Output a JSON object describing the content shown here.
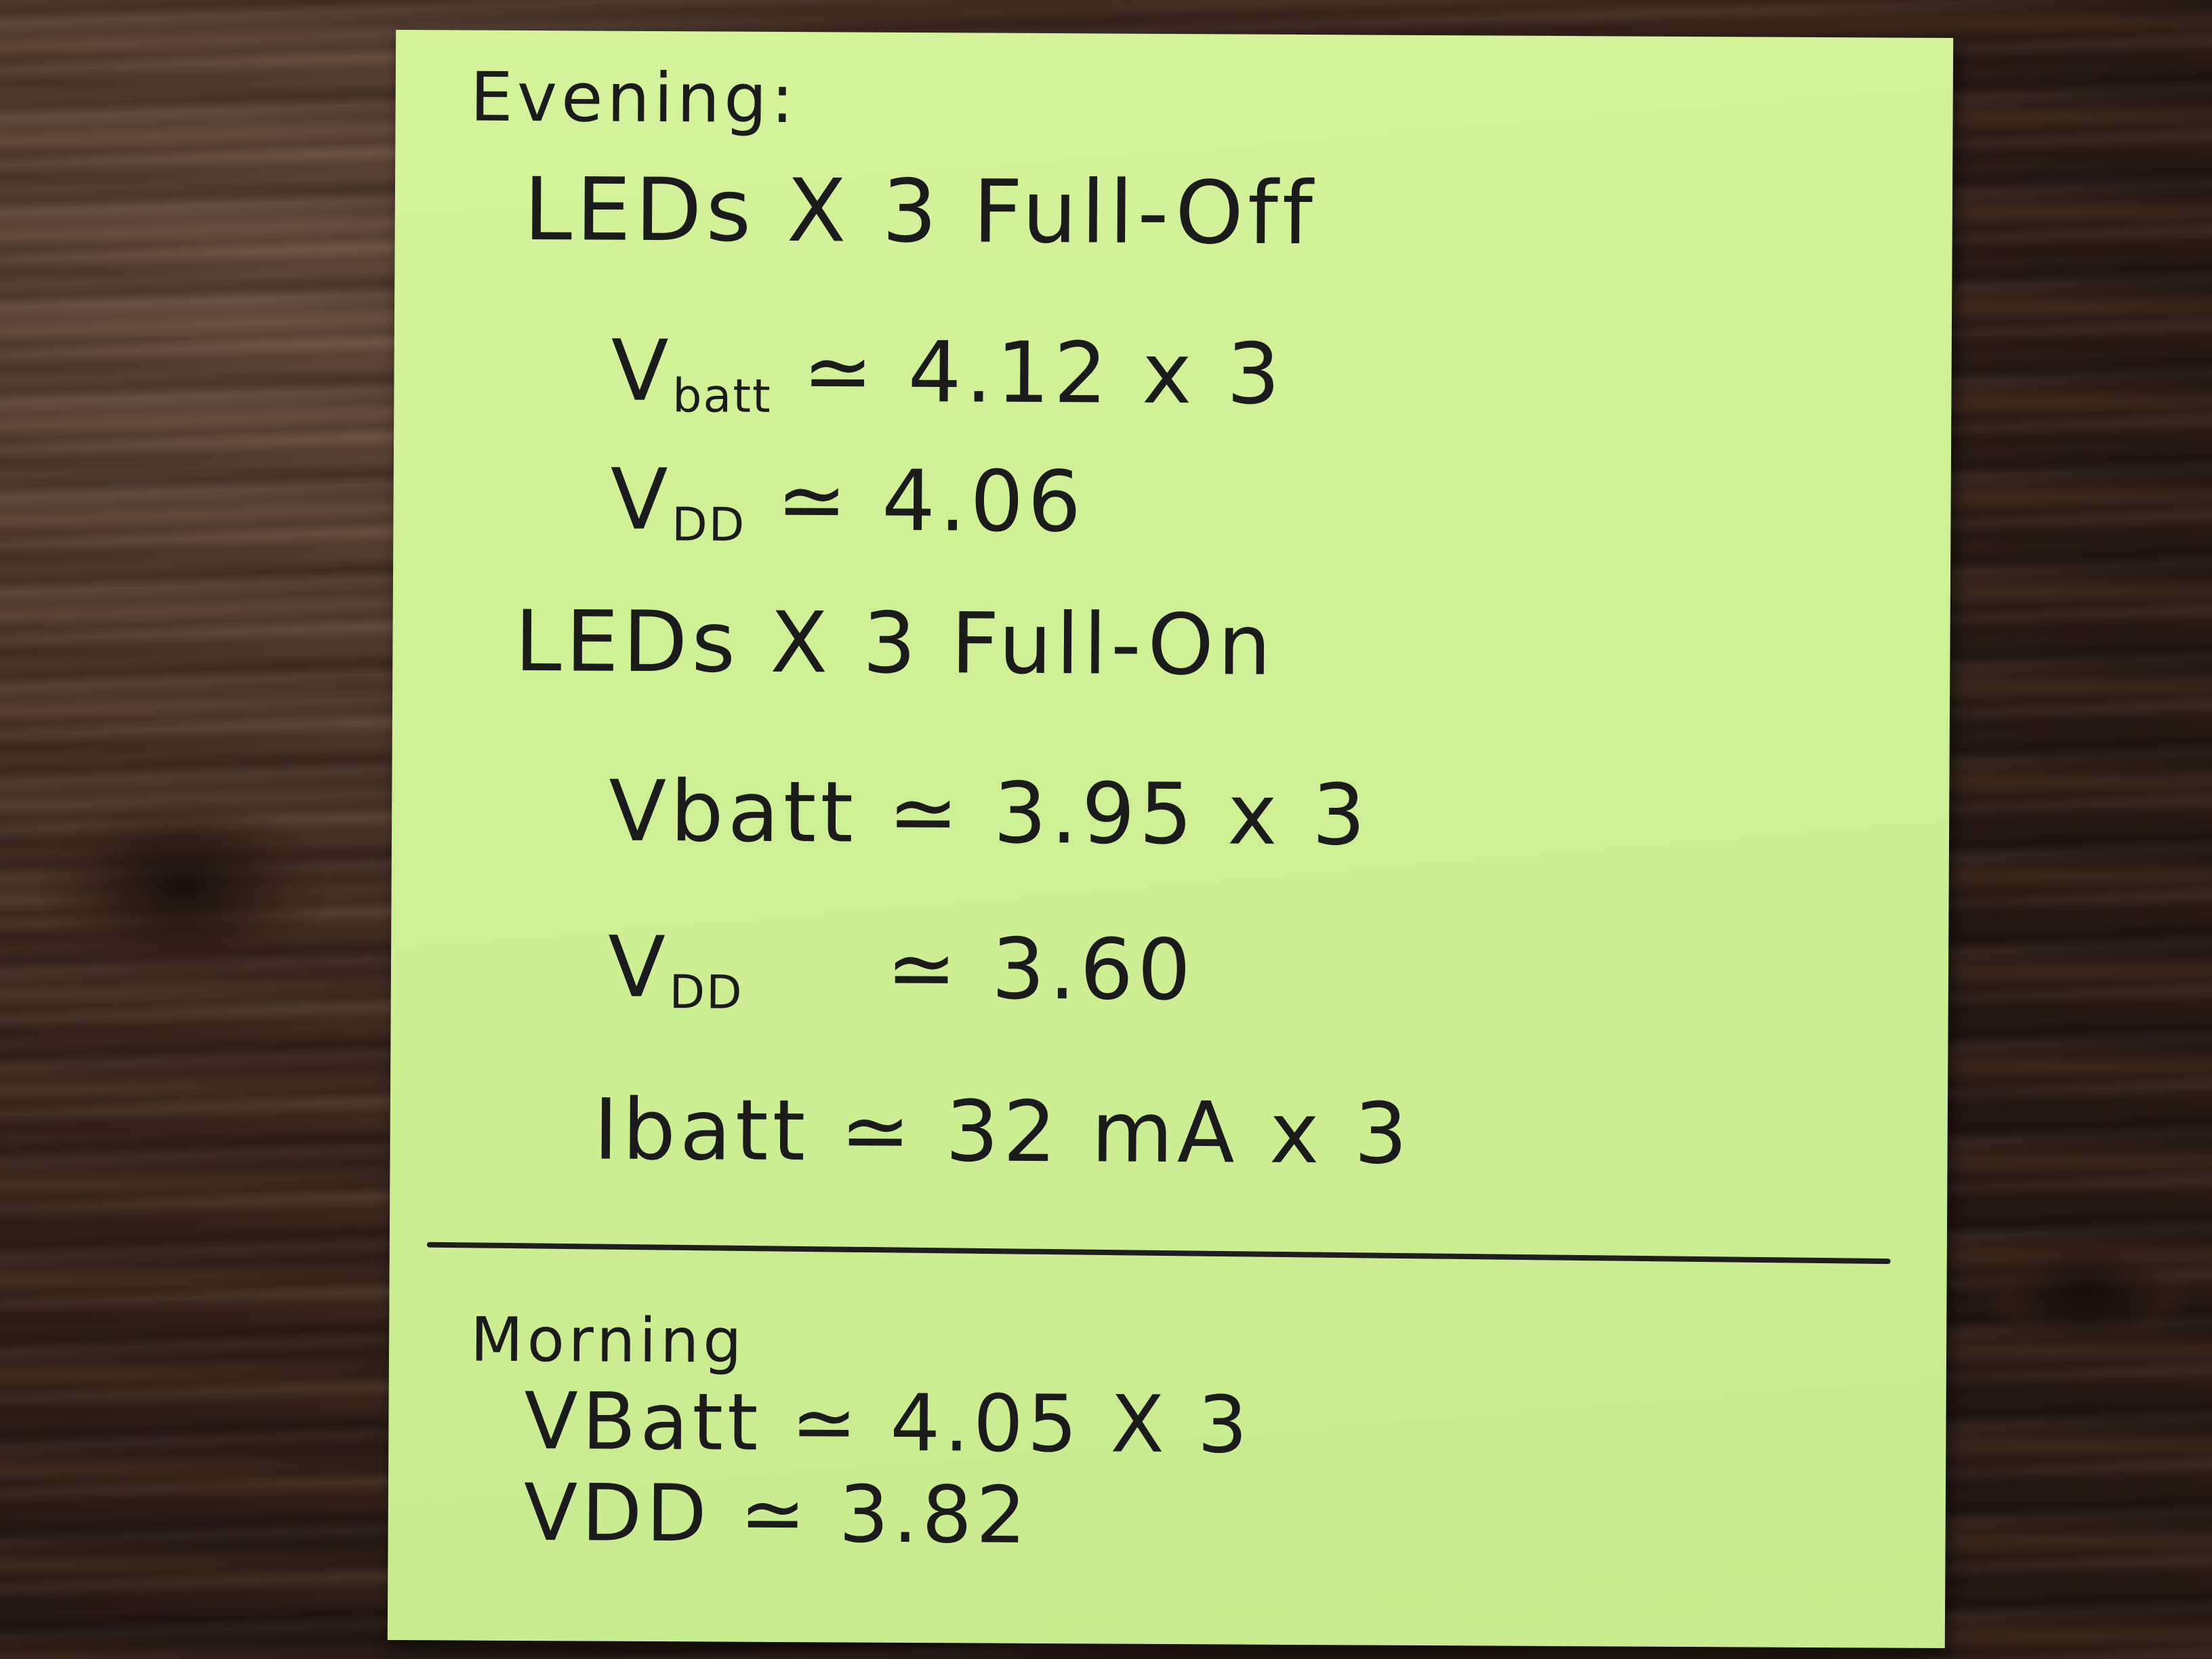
{
  "note": {
    "evening": {
      "heading": "Evening:",
      "off_header": "LEDs X 3 Full-Off",
      "off_vbatt_label": "V",
      "off_vbatt_sub": "batt",
      "off_vbatt_value": "≃ 4.12 x 3",
      "off_vdd_label": "V",
      "off_vdd_sub": "DD",
      "off_vdd_value": "≃ 4.06",
      "on_header": "LEDs X 3 Full-On",
      "on_vbatt_label": "Vbatt",
      "on_vbatt_value": "≃ 3.95 x 3",
      "on_vdd_label": "V",
      "on_vdd_sub": "DD",
      "on_vdd_value": "≃ 3.60",
      "on_ibatt_label": "Ibatt",
      "on_ibatt_value": "≃ 32 mA x 3"
    },
    "morning": {
      "heading": "Morning",
      "vbatt_label": "VBatt",
      "vbatt_value": "≃ 4.05 X 3",
      "vdd_label": "VDD",
      "vdd_value": "≃ 3.82"
    }
  },
  "colors": {
    "note_paper": "#cff095",
    "ink": "#1b1b1b",
    "wood_dark": "#2c1c16"
  }
}
